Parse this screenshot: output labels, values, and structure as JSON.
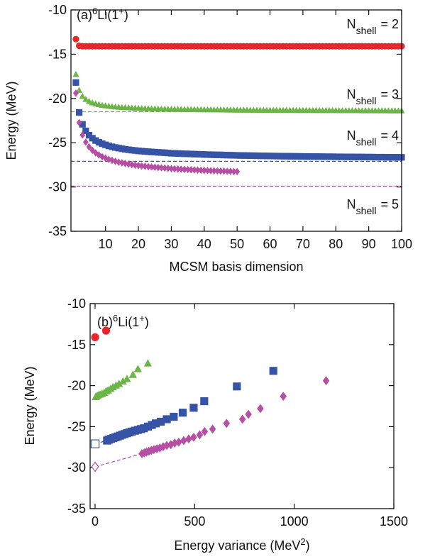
{
  "chart_data": [
    {
      "type": "scatter",
      "title": {
        "prefix": "(a)",
        "mass": "6",
        "element": "Li(1",
        "charge": "+",
        "suffix": ")"
      },
      "x_label": "MCSM basis dimension",
      "y_label": "Energy (MeV)",
      "xlim": [
        -0.5,
        100
      ],
      "ylim": [
        -35,
        -10
      ],
      "xticks": [
        10,
        20,
        30,
        40,
        50,
        60,
        70,
        80,
        90,
        100
      ],
      "yticks": [
        -35,
        -30,
        -25,
        -20,
        -15,
        -10
      ],
      "x": [
        1,
        2,
        3,
        4,
        5,
        6,
        7,
        8,
        9,
        10,
        11,
        12,
        13,
        14,
        15,
        16,
        17,
        18,
        19,
        20,
        21,
        22,
        23,
        24,
        25,
        26,
        27,
        28,
        29,
        30,
        31,
        32,
        33,
        34,
        35,
        36,
        37,
        38,
        39,
        40,
        41,
        42,
        43,
        44,
        45,
        46,
        47,
        48,
        49,
        50,
        51,
        52,
        53,
        54,
        55,
        56,
        57,
        58,
        59,
        60,
        61,
        62,
        63,
        64,
        65,
        66,
        67,
        68,
        69,
        70,
        71,
        72,
        73,
        74,
        75,
        76,
        77,
        78,
        79,
        80,
        81,
        82,
        83,
        84,
        85,
        86,
        87,
        88,
        89,
        90,
        91,
        92,
        93,
        94,
        95,
        96,
        97,
        98,
        99,
        100
      ],
      "series": [
        {
          "label": {
            "base": "N",
            "sub": "shell",
            "rest": "= 2"
          },
          "color": "#e8262a",
          "marker": "circle",
          "values": [
            -13.3,
            -14.05,
            -14.1,
            -14.1,
            -14.1,
            -14.1,
            -14.1,
            -14.1,
            -14.1,
            -14.1,
            -14.1,
            -14.1,
            -14.1,
            -14.1,
            -14.1,
            -14.1,
            -14.1,
            -14.1,
            -14.1,
            -14.1,
            -14.1,
            -14.1,
            -14.1,
            -14.1,
            -14.1,
            -14.1,
            -14.1,
            -14.1,
            -14.1,
            -14.1,
            -14.1,
            -14.1,
            -14.1,
            -14.1,
            -14.1,
            -14.1,
            -14.1,
            -14.1,
            -14.1,
            -14.1,
            -14.1,
            -14.1,
            -14.1,
            -14.1,
            -14.1,
            -14.1,
            -14.1,
            -14.1,
            -14.1,
            -14.1,
            -14.1,
            -14.1,
            -14.1,
            -14.1,
            -14.1,
            -14.1,
            -14.1,
            -14.1,
            -14.1,
            -14.1,
            -14.1,
            -14.1,
            -14.1,
            -14.1,
            -14.1,
            -14.1,
            -14.1,
            -14.1,
            -14.1,
            -14.1,
            -14.1,
            -14.1,
            -14.1,
            -14.1,
            -14.1,
            -14.1,
            -14.1,
            -14.1,
            -14.1,
            -14.1,
            -14.1,
            -14.1,
            -14.1,
            -14.1,
            -14.1,
            -14.1,
            -14.1,
            -14.1,
            -14.1,
            -14.1,
            -14.1,
            -14.1,
            -14.1,
            -14.1,
            -14.1,
            -14.1,
            -14.1,
            -14.1,
            -14.1,
            -14.1
          ]
        },
        {
          "label": {
            "base": "N",
            "sub": "shell",
            "rest": "= 3"
          },
          "color": "#6ab545",
          "marker": "triangle",
          "values": [
            -17.3,
            -19.09,
            -19.76,
            -20.11,
            -20.34,
            -20.5,
            -20.61,
            -20.7,
            -20.78,
            -20.83,
            -20.88,
            -20.92,
            -20.96,
            -20.99,
            -21.02,
            -21.04,
            -21.06,
            -21.08,
            -21.1,
            -21.12,
            -21.14,
            -21.15,
            -21.16,
            -21.17,
            -21.18,
            -21.19,
            -21.2,
            -21.21,
            -21.22,
            -21.23,
            -21.23,
            -21.24,
            -21.24,
            -21.25,
            -21.25,
            -21.26,
            -21.26,
            -21.27,
            -21.27,
            -21.28,
            -21.28,
            -21.28,
            -21.29,
            -21.29,
            -21.3,
            -21.3,
            -21.31,
            -21.31,
            -21.31,
            -21.32,
            -21.32,
            -21.32,
            -21.32,
            -21.33,
            -21.33,
            -21.33,
            -21.33,
            -21.34,
            -21.34,
            -21.34,
            -21.34,
            -21.34,
            -21.35,
            -21.35,
            -21.35,
            -21.35,
            -21.35,
            -21.36,
            -21.36,
            -21.36,
            -21.36,
            -21.36,
            -21.36,
            -21.36,
            -21.37,
            -21.37,
            -21.37,
            -21.37,
            -21.37,
            -21.37,
            -21.38,
            -21.38,
            -21.38,
            -21.38,
            -21.38,
            -21.38,
            -21.38,
            -21.39,
            -21.39,
            -21.39,
            -21.39,
            -21.39,
            -21.39,
            -21.39,
            -21.39,
            -21.4,
            -21.4,
            -21.4,
            -21.4,
            -21.4
          ]
        },
        {
          "label": {
            "base": "N",
            "sub": "shell",
            "rest": "= 4"
          },
          "color": "#3753a5",
          "marker": "square",
          "values": [
            -18.2,
            -21.58,
            -22.92,
            -23.66,
            -24.15,
            -24.49,
            -24.75,
            -24.95,
            -25.11,
            -25.24,
            -25.36,
            -25.46,
            -25.54,
            -25.61,
            -25.68,
            -25.74,
            -25.79,
            -25.84,
            -25.88,
            -25.92,
            -25.95,
            -25.98,
            -26.01,
            -26.04,
            -26.06,
            -26.09,
            -26.11,
            -26.13,
            -26.16,
            -26.19,
            -26.2,
            -26.22,
            -26.23,
            -26.25,
            -26.26,
            -26.27,
            -26.29,
            -26.3,
            -26.31,
            -26.33,
            -26.34,
            -26.35,
            -26.36,
            -26.37,
            -26.38,
            -26.39,
            -26.4,
            -26.41,
            -26.42,
            -26.43,
            -26.44,
            -26.44,
            -26.45,
            -26.46,
            -26.46,
            -26.47,
            -26.48,
            -26.48,
            -26.49,
            -26.5,
            -26.5,
            -26.51,
            -26.51,
            -26.52,
            -26.52,
            -26.53,
            -26.53,
            -26.54,
            -26.54,
            -26.55,
            -26.55,
            -26.56,
            -26.56,
            -26.56,
            -26.57,
            -26.57,
            -26.58,
            -26.58,
            -26.58,
            -26.59,
            -26.59,
            -26.59,
            -26.6,
            -26.6,
            -26.6,
            -26.61,
            -26.61,
            -26.61,
            -26.62,
            -26.62,
            -26.62,
            -26.63,
            -26.63,
            -26.63,
            -26.63,
            -26.64,
            -26.64,
            -26.64,
            -26.65,
            -26.65
          ]
        },
        {
          "label": {
            "base": "N",
            "sub": "shell",
            "rest": "= 5"
          },
          "color": "#b64fa4",
          "marker": "diamond",
          "x": [
            1,
            2,
            3,
            4,
            5,
            6,
            7,
            8,
            9,
            10,
            11,
            12,
            13,
            14,
            15,
            16,
            17,
            18,
            19,
            20,
            21,
            22,
            23,
            24,
            25,
            26,
            27,
            28,
            29,
            30,
            31,
            32,
            33,
            34,
            35,
            36,
            37,
            38,
            39,
            40,
            41,
            42,
            43,
            44,
            45,
            46,
            47,
            48,
            49,
            50
          ],
          "values": [
            -19.4,
            -22.73,
            -24.13,
            -24.93,
            -25.47,
            -25.85,
            -26.15,
            -26.38,
            -26.58,
            -26.74,
            -26.88,
            -26.99,
            -27.1,
            -27.19,
            -27.27,
            -27.34,
            -27.41,
            -27.47,
            -27.53,
            -27.58,
            -27.62,
            -27.66,
            -27.7,
            -27.74,
            -27.77,
            -27.8,
            -27.83,
            -27.86,
            -27.89,
            -27.93,
            -27.95,
            -27.97,
            -27.99,
            -28.01,
            -28.03,
            -28.05,
            -28.07,
            -28.09,
            -28.11,
            -28.13,
            -28.14,
            -28.16,
            -28.17,
            -28.18,
            -28.2,
            -28.21,
            -28.22,
            -28.23,
            -28.25,
            -28.26
          ]
        }
      ],
      "reference_lines": [
        {
          "color": "#6ab545",
          "value": -21.5
        },
        {
          "color": "#3753a5",
          "value": -27.1
        },
        {
          "color": "#b64fa4",
          "value": -29.9
        }
      ]
    },
    {
      "type": "scatter",
      "title": {
        "prefix": "(b)",
        "mass": "6",
        "element": "Li(1",
        "charge": "+",
        "suffix": ")"
      },
      "x_label": {
        "text": "Energy variance (MeV",
        "sup": "2",
        "end": ")"
      },
      "y_label": "Energy (MeV)",
      "xlim": [
        -25,
        1500
      ],
      "ylim": [
        -35,
        -10
      ],
      "xticks": [
        0,
        500,
        1000,
        1500
      ],
      "yticks": [
        -35,
        -30,
        -25,
        -20,
        -15,
        -10
      ],
      "series": [
        {
          "color": "#e8262a",
          "marker": "circle",
          "filled": true,
          "x": [
            0,
            55
          ],
          "values": [
            -14.1,
            -13.3
          ]
        },
        {
          "color": "#6ab545",
          "marker": "triangle",
          "filled": true,
          "x": [
            265,
            215,
            190,
            160,
            140,
            120,
            105,
            90,
            78,
            65,
            55,
            45,
            35,
            25,
            15,
            8,
            3
          ],
          "values": [
            -17.3,
            -18.0,
            -18.7,
            -19.2,
            -19.5,
            -19.8,
            -20.0,
            -20.2,
            -20.4,
            -20.6,
            -20.7,
            -20.9,
            -21.0,
            -21.1,
            -21.2,
            -21.3,
            -21.4
          ]
        },
        {
          "color": "#3753a5",
          "marker": "square",
          "filled": true,
          "x": [
            895,
            712,
            548,
            495,
            440,
            395,
            360,
            330,
            305,
            285,
            265,
            245,
            230,
            215,
            200,
            185,
            172,
            160,
            148,
            136,
            125,
            114,
            103,
            92,
            80,
            68,
            60
          ],
          "values": [
            -18.2,
            -20.1,
            -21.9,
            -22.7,
            -23.3,
            -23.8,
            -24.1,
            -24.4,
            -24.6,
            -24.8,
            -25.0,
            -25.2,
            -25.3,
            -25.4,
            -25.5,
            -25.6,
            -25.7,
            -25.8,
            -25.9,
            -26.0,
            -26.1,
            -26.2,
            -26.3,
            -26.4,
            -26.5,
            -26.6,
            -26.7
          ]
        },
        {
          "color": "#b64fa4",
          "marker": "diamond",
          "filled": true,
          "x": [
            1160,
            945,
            830,
            770,
            740,
            660,
            590,
            550,
            525,
            495,
            470,
            445,
            420,
            400,
            380,
            360,
            342,
            325,
            310,
            295,
            282,
            270,
            258,
            247,
            235
          ],
          "values": [
            -19.4,
            -21.3,
            -22.8,
            -23.5,
            -24.1,
            -24.6,
            -25.3,
            -25.6,
            -26.0,
            -26.3,
            -26.5,
            -26.7,
            -26.9,
            -27.0,
            -27.2,
            -27.3,
            -27.45,
            -27.6,
            -27.7,
            -27.8,
            -27.9,
            -28.0,
            -28.1,
            -28.2,
            -28.3
          ]
        },
        {
          "color": "#3753a5",
          "marker": "square",
          "filled": false,
          "x": [
            0
          ],
          "values": [
            -27.1
          ]
        },
        {
          "color": "#b64fa4",
          "marker": "diamond",
          "filled": false,
          "x": [
            0
          ],
          "values": [
            -29.9
          ]
        }
      ],
      "fit_lines": [
        {
          "color": "#b64fa4",
          "x": [
            0,
            235
          ],
          "values": [
            -29.9,
            -28.3
          ]
        },
        {
          "color": "#3753a5",
          "x": [
            0,
            60
          ],
          "values": [
            -27.1,
            -26.7
          ]
        }
      ]
    }
  ]
}
